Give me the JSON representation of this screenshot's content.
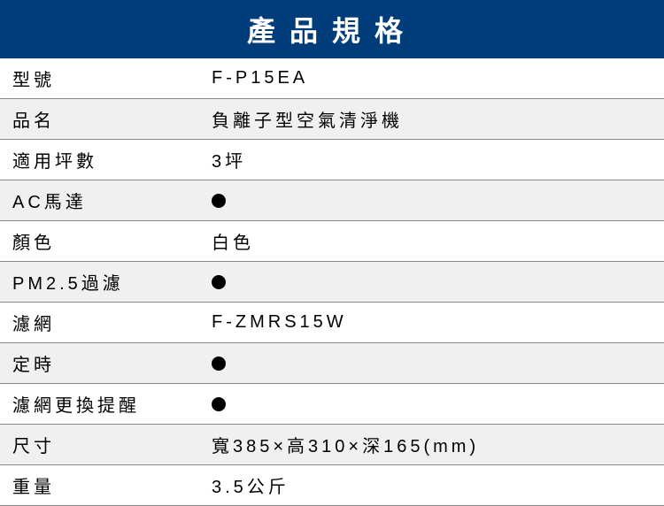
{
  "title": "產品規格",
  "header_bg": "#003d7a",
  "header_color": "#ffffff",
  "alt_row_bg": "#f0f0f0",
  "border_color": "#888888",
  "text_color": "#000000",
  "dot_color": "#000000",
  "columns": [
    "label",
    "value"
  ],
  "rows": [
    {
      "label": "型號",
      "value": "F-P15EA",
      "is_dot": false,
      "alt": false
    },
    {
      "label": "品名",
      "value": "負離子型空氣清淨機",
      "is_dot": false,
      "alt": true
    },
    {
      "label": "適用坪數",
      "value": "3坪",
      "is_dot": false,
      "alt": false
    },
    {
      "label": "AC馬達",
      "value": "",
      "is_dot": true,
      "alt": true
    },
    {
      "label": "顏色",
      "value": "白色",
      "is_dot": false,
      "alt": false
    },
    {
      "label": "PM2.5過濾",
      "value": "",
      "is_dot": true,
      "alt": true
    },
    {
      "label": "濾網",
      "value": "F-ZMRS15W",
      "is_dot": false,
      "alt": false
    },
    {
      "label": "定時",
      "value": "",
      "is_dot": true,
      "alt": true
    },
    {
      "label": "濾網更換提醒",
      "value": "",
      "is_dot": true,
      "alt": false
    },
    {
      "label": "尺寸",
      "value": "寬385×高310×深165(mm)",
      "is_dot": false,
      "alt": true
    },
    {
      "label": "重量",
      "value": "3.5公斤",
      "is_dot": false,
      "alt": false
    }
  ]
}
